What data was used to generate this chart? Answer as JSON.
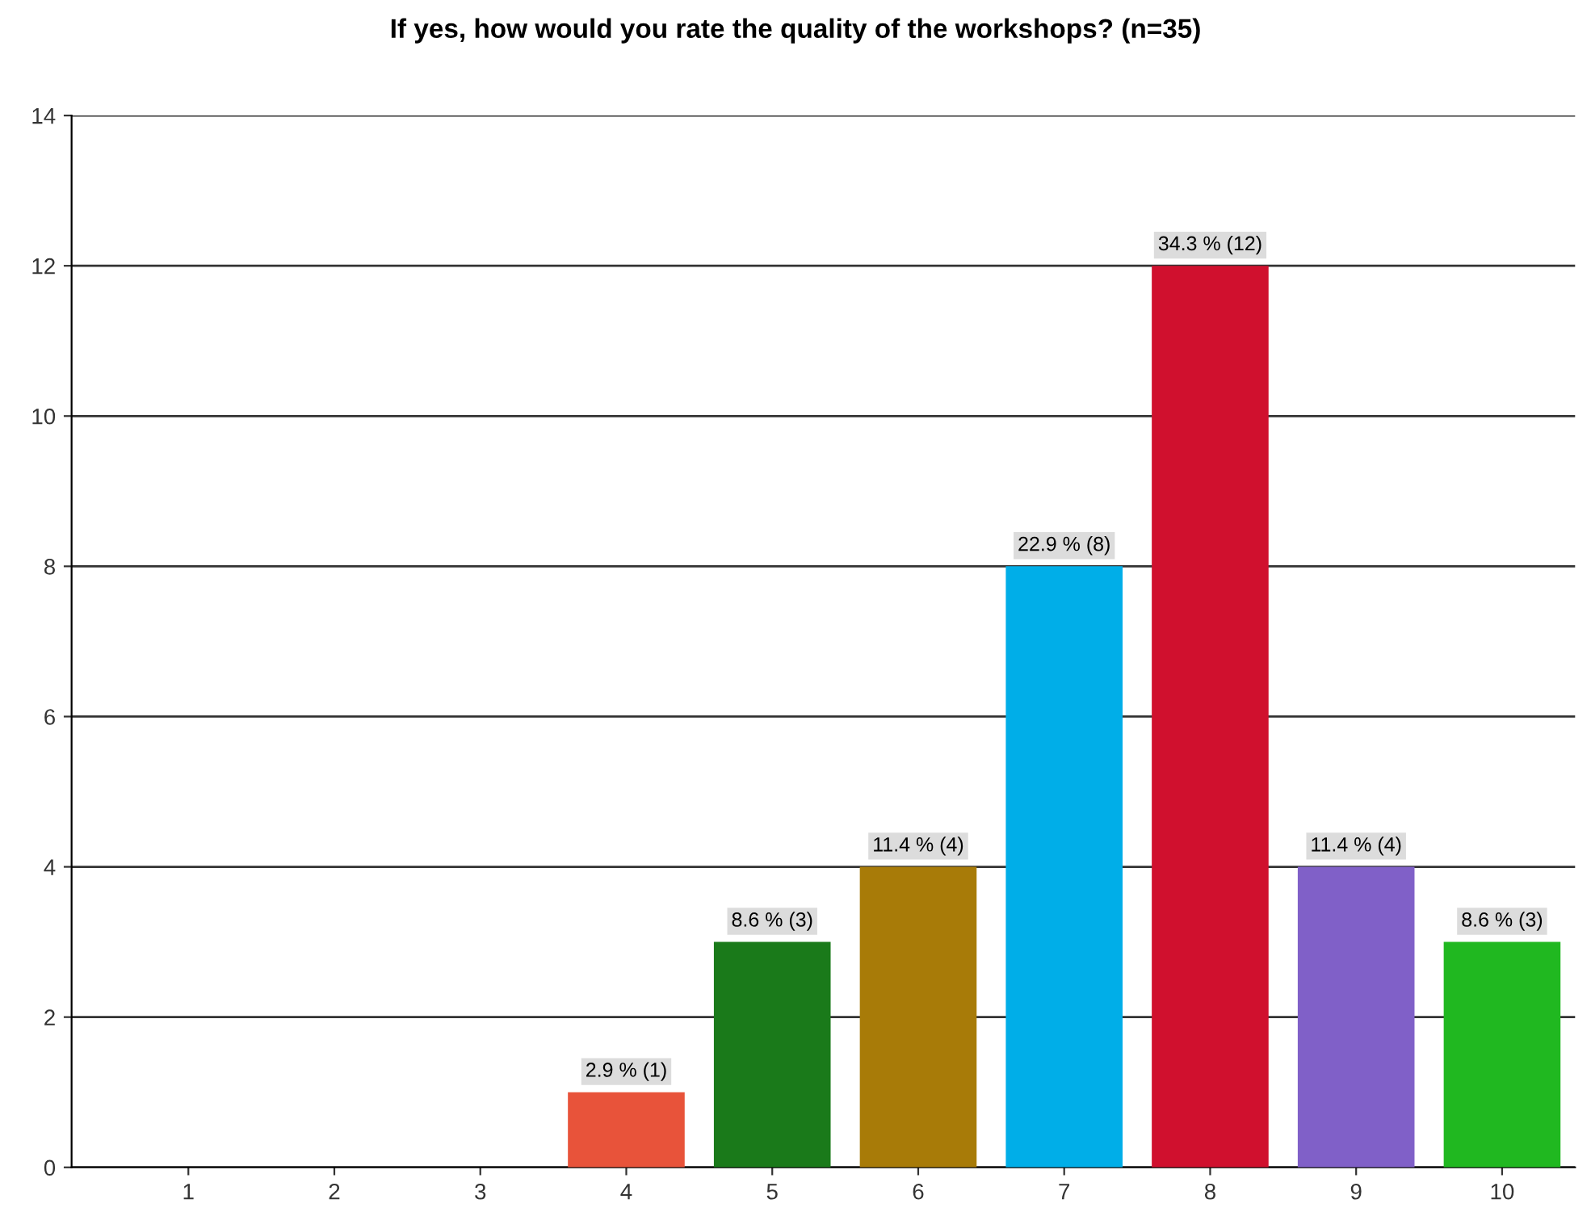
{
  "chart_data": {
    "type": "bar",
    "title": "If yes, how would you rate the quality of the workshops? (n=35)",
    "categories": [
      "1",
      "2",
      "3",
      "4",
      "5",
      "6",
      "7",
      "8",
      "9",
      "10"
    ],
    "values": [
      0,
      0,
      0,
      1,
      3,
      4,
      8,
      12,
      4,
      3
    ],
    "colors": [
      "#e8533a",
      "#e8533a",
      "#e8533a",
      "#e8533a",
      "#1a7a1a",
      "#a87b08",
      "#00aee8",
      "#d0102e",
      "#8060c8",
      "#20b820"
    ],
    "value_labels": [
      null,
      null,
      null,
      "2.9 % (1)",
      "8.6 % (3)",
      "11.4 % (4)",
      "22.9 % (8)",
      "34.3 % (12)",
      "11.4 % (4)",
      "8.6 % (3)"
    ],
    "ylim": [
      0,
      14
    ],
    "yticks": [
      0,
      2,
      4,
      6,
      8,
      10,
      12,
      14
    ],
    "grid": "y",
    "legend": false
  }
}
